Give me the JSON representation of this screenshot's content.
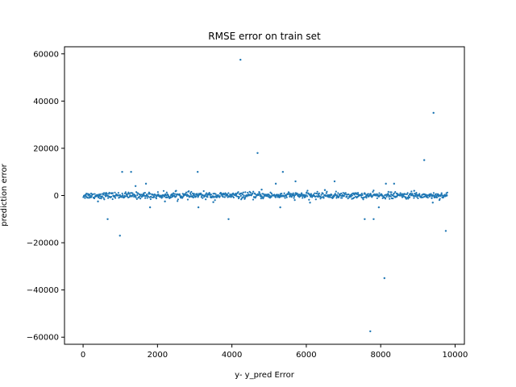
{
  "chart_data": {
    "type": "scatter",
    "title": "RMSE error on train set",
    "xlabel": "y- y_pred Error",
    "ylabel": "prediction error",
    "xlim": [
      -500,
      10250
    ],
    "ylim": [
      -63000,
      63000
    ],
    "x_ticks": [
      0,
      2000,
      4000,
      6000,
      8000,
      10000
    ],
    "y_ticks": [
      -60000,
      -40000,
      -20000,
      0,
      20000,
      40000,
      60000
    ],
    "grid": false,
    "legend": "none",
    "color": "#1f77b4",
    "series": [
      {
        "points": [
          [
            4230,
            57500
          ],
          [
            9420,
            35000
          ],
          [
            4690,
            18000
          ],
          [
            9170,
            15000
          ],
          [
            3080,
            10000
          ],
          [
            1050,
            10000
          ],
          [
            1290,
            10000
          ],
          [
            5370,
            10000
          ],
          [
            1690,
            5000
          ],
          [
            5710,
            6000
          ],
          [
            6760,
            6000
          ],
          [
            8140,
            5000
          ],
          [
            8360,
            5000
          ],
          [
            1410,
            4000
          ],
          [
            5180,
            5000
          ],
          [
            660,
            -10000
          ],
          [
            3910,
            -10000
          ],
          [
            7570,
            -10000
          ],
          [
            7810,
            -10000
          ],
          [
            990,
            -17000
          ],
          [
            9750,
            -15000
          ],
          [
            8100,
            -35000
          ],
          [
            7720,
            -57500
          ],
          [
            1800,
            -5000
          ],
          [
            3100,
            -5000
          ],
          [
            5300,
            -5000
          ],
          [
            7950,
            -5000
          ],
          [
            9400,
            -3000
          ],
          [
            2500,
            2000
          ],
          [
            4800,
            2500
          ],
          [
            6500,
            2300
          ],
          [
            400,
            -2500
          ],
          [
            2200,
            -2500
          ],
          [
            6100,
            -3000
          ],
          [
            8900,
            2000
          ],
          [
            3500,
            -2800
          ]
        ],
        "band": {
          "x_range": [
            0,
            9800
          ],
          "y_spread": 1500,
          "count": 900
        }
      }
    ]
  }
}
